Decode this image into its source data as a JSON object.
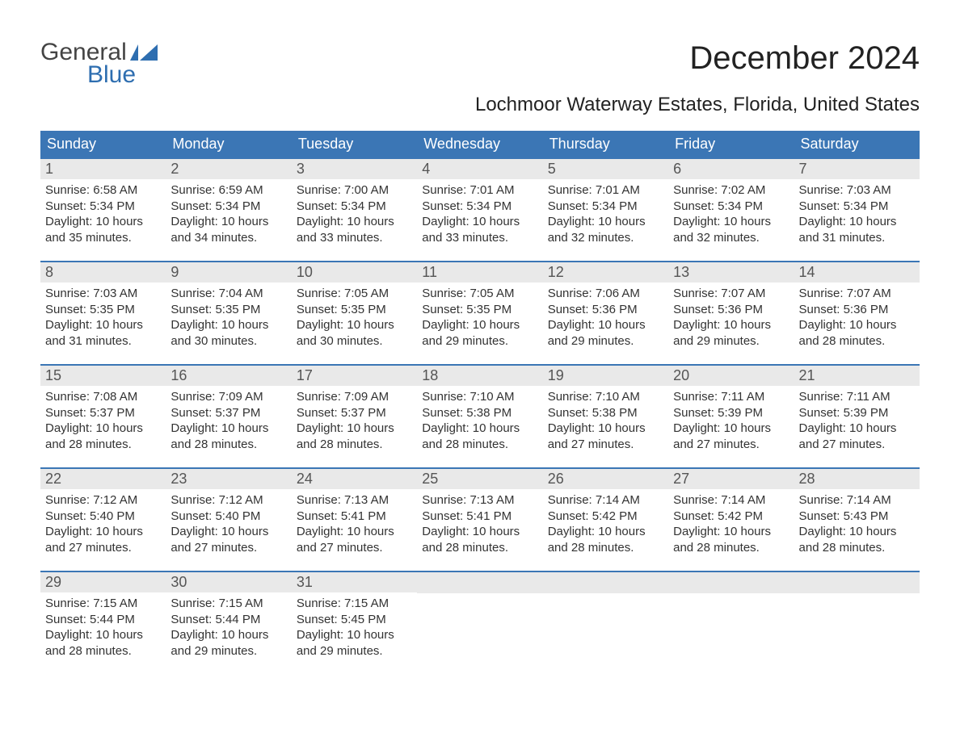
{
  "logo": {
    "word1": "General",
    "word2": "Blue",
    "icon_color": "#2e6eb0",
    "text1_color": "#444444",
    "text2_color": "#2e6eb0"
  },
  "title": "December 2024",
  "subtitle": "Lochmoor Waterway Estates, Florida, United States",
  "colors": {
    "header_bg": "#3b76b5",
    "header_text": "#ffffff",
    "daynum_bg": "#e9e9e9",
    "daynum_text": "#555555",
    "row_border": "#3b76b5",
    "body_text": "#333333",
    "page_bg": "#ffffff"
  },
  "fontsizes": {
    "title": 40,
    "subtitle": 24,
    "weekday": 18,
    "daynum": 18,
    "body": 15,
    "logo": 30
  },
  "weekdays": [
    "Sunday",
    "Monday",
    "Tuesday",
    "Wednesday",
    "Thursday",
    "Friday",
    "Saturday"
  ],
  "weeks": [
    [
      {
        "n": "1",
        "sr": "6:58 AM",
        "ss": "5:34 PM",
        "dl": "10 hours and 35 minutes."
      },
      {
        "n": "2",
        "sr": "6:59 AM",
        "ss": "5:34 PM",
        "dl": "10 hours and 34 minutes."
      },
      {
        "n": "3",
        "sr": "7:00 AM",
        "ss": "5:34 PM",
        "dl": "10 hours and 33 minutes."
      },
      {
        "n": "4",
        "sr": "7:01 AM",
        "ss": "5:34 PM",
        "dl": "10 hours and 33 minutes."
      },
      {
        "n": "5",
        "sr": "7:01 AM",
        "ss": "5:34 PM",
        "dl": "10 hours and 32 minutes."
      },
      {
        "n": "6",
        "sr": "7:02 AM",
        "ss": "5:34 PM",
        "dl": "10 hours and 32 minutes."
      },
      {
        "n": "7",
        "sr": "7:03 AM",
        "ss": "5:34 PM",
        "dl": "10 hours and 31 minutes."
      }
    ],
    [
      {
        "n": "8",
        "sr": "7:03 AM",
        "ss": "5:35 PM",
        "dl": "10 hours and 31 minutes."
      },
      {
        "n": "9",
        "sr": "7:04 AM",
        "ss": "5:35 PM",
        "dl": "10 hours and 30 minutes."
      },
      {
        "n": "10",
        "sr": "7:05 AM",
        "ss": "5:35 PM",
        "dl": "10 hours and 30 minutes."
      },
      {
        "n": "11",
        "sr": "7:05 AM",
        "ss": "5:35 PM",
        "dl": "10 hours and 29 minutes."
      },
      {
        "n": "12",
        "sr": "7:06 AM",
        "ss": "5:36 PM",
        "dl": "10 hours and 29 minutes."
      },
      {
        "n": "13",
        "sr": "7:07 AM",
        "ss": "5:36 PM",
        "dl": "10 hours and 29 minutes."
      },
      {
        "n": "14",
        "sr": "7:07 AM",
        "ss": "5:36 PM",
        "dl": "10 hours and 28 minutes."
      }
    ],
    [
      {
        "n": "15",
        "sr": "7:08 AM",
        "ss": "5:37 PM",
        "dl": "10 hours and 28 minutes."
      },
      {
        "n": "16",
        "sr": "7:09 AM",
        "ss": "5:37 PM",
        "dl": "10 hours and 28 minutes."
      },
      {
        "n": "17",
        "sr": "7:09 AM",
        "ss": "5:37 PM",
        "dl": "10 hours and 28 minutes."
      },
      {
        "n": "18",
        "sr": "7:10 AM",
        "ss": "5:38 PM",
        "dl": "10 hours and 28 minutes."
      },
      {
        "n": "19",
        "sr": "7:10 AM",
        "ss": "5:38 PM",
        "dl": "10 hours and 27 minutes."
      },
      {
        "n": "20",
        "sr": "7:11 AM",
        "ss": "5:39 PM",
        "dl": "10 hours and 27 minutes."
      },
      {
        "n": "21",
        "sr": "7:11 AM",
        "ss": "5:39 PM",
        "dl": "10 hours and 27 minutes."
      }
    ],
    [
      {
        "n": "22",
        "sr": "7:12 AM",
        "ss": "5:40 PM",
        "dl": "10 hours and 27 minutes."
      },
      {
        "n": "23",
        "sr": "7:12 AM",
        "ss": "5:40 PM",
        "dl": "10 hours and 27 minutes."
      },
      {
        "n": "24",
        "sr": "7:13 AM",
        "ss": "5:41 PM",
        "dl": "10 hours and 27 minutes."
      },
      {
        "n": "25",
        "sr": "7:13 AM",
        "ss": "5:41 PM",
        "dl": "10 hours and 28 minutes."
      },
      {
        "n": "26",
        "sr": "7:14 AM",
        "ss": "5:42 PM",
        "dl": "10 hours and 28 minutes."
      },
      {
        "n": "27",
        "sr": "7:14 AM",
        "ss": "5:42 PM",
        "dl": "10 hours and 28 minutes."
      },
      {
        "n": "28",
        "sr": "7:14 AM",
        "ss": "5:43 PM",
        "dl": "10 hours and 28 minutes."
      }
    ],
    [
      {
        "n": "29",
        "sr": "7:15 AM",
        "ss": "5:44 PM",
        "dl": "10 hours and 28 minutes."
      },
      {
        "n": "30",
        "sr": "7:15 AM",
        "ss": "5:44 PM",
        "dl": "10 hours and 29 minutes."
      },
      {
        "n": "31",
        "sr": "7:15 AM",
        "ss": "5:45 PM",
        "dl": "10 hours and 29 minutes."
      },
      null,
      null,
      null,
      null
    ]
  ],
  "labels": {
    "sunrise": "Sunrise:",
    "sunset": "Sunset:",
    "daylight": "Daylight:"
  }
}
